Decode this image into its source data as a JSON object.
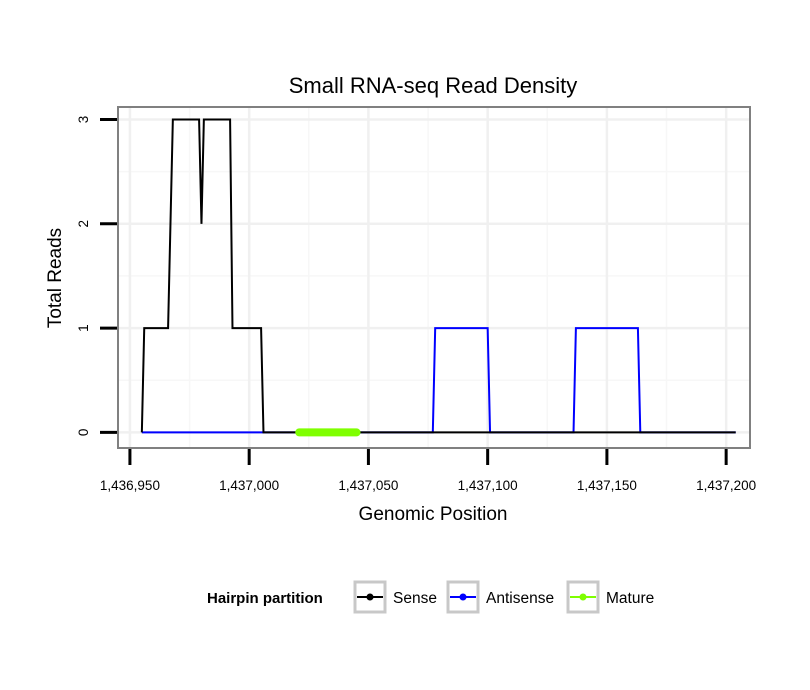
{
  "chart_data": {
    "type": "line",
    "title": "Small RNA-seq Read Density",
    "xlabel": "Genomic Position",
    "ylabel": "Total Reads",
    "xlim": [
      1436945,
      1437210
    ],
    "ylim": [
      -0.15,
      3.12
    ],
    "x_ticks": [
      1436950,
      1437000,
      1437050,
      1437100,
      1437150,
      1437200
    ],
    "x_tick_labels": [
      "1,436,950",
      "1,437,000",
      "1,437,050",
      "1,437,100",
      "1,437,150",
      "1,437,200"
    ],
    "y_ticks": [
      0,
      1,
      2,
      3
    ],
    "y_tick_labels": [
      "0",
      "1",
      "2",
      "3"
    ],
    "grid": true,
    "legend": {
      "title": "Hairpin partition",
      "position": "bottom",
      "entries": [
        {
          "label": "Sense",
          "color": "#000000"
        },
        {
          "label": "Antisense",
          "color": "#0000ff"
        },
        {
          "label": "Mature",
          "color": "#7fff00"
        }
      ]
    },
    "series": [
      {
        "name": "Antisense",
        "color": "#0000ff",
        "x": [
          1436955,
          1437005,
          1437077,
          1437078,
          1437100,
          1437101,
          1437136,
          1437137,
          1437163,
          1437164,
          1437204
        ],
        "y": [
          0,
          0,
          0,
          1,
          1,
          0,
          0,
          1,
          1,
          0,
          0
        ]
      },
      {
        "name": "Sense",
        "color": "#000000",
        "x": [
          1436955,
          1436956,
          1436966,
          1436968,
          1436979,
          1436980,
          1436981,
          1436992,
          1436993,
          1437005,
          1437006,
          1437204
        ],
        "y": [
          0,
          1,
          1,
          3,
          3,
          2,
          3,
          3,
          1,
          1,
          0,
          0
        ]
      },
      {
        "name": "Mature",
        "color": "#7fff00",
        "x": [
          1437021,
          1437045
        ],
        "y": [
          0,
          0
        ]
      }
    ]
  }
}
